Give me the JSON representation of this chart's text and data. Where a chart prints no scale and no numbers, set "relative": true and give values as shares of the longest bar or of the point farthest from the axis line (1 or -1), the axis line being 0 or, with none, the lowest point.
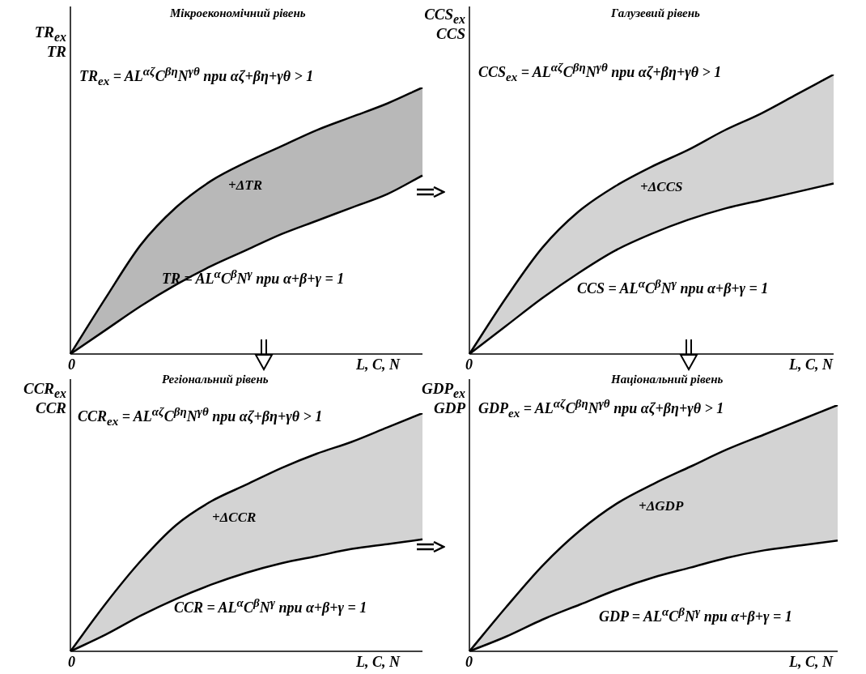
{
  "chart_data": [
    {
      "type": "area",
      "title": "Мікроекономічний рівень",
      "ylabel": "TR$_{ex}$\nTR",
      "xlabel": "L, C, N",
      "relative": true,
      "stacked": true,
      "categories": [
        null,
        null,
        null,
        null,
        null,
        null,
        null,
        null,
        null,
        null,
        null
      ],
      "series": [
        {
          "color": "#ffffff",
          "values": [
            0,
            0.09,
            0.18,
            0.26,
            0.33,
            0.39,
            0.45,
            0.5,
            0.55,
            0.6,
            0.67
          ]
        },
        {
          "color": "#b8b8b8",
          "values": [
            0,
            0.12,
            0.23,
            0.29,
            0.32,
            0.33,
            0.33,
            0.34,
            0.34,
            0.34,
            0.33
          ]
        }
      ],
      "annotations": [
        "TR$_{ex}$ = AL$^{αζ}$C$^{βη}$N$^{γθ}$ при αζ+βη+γθ > 1",
        "+ΔTR",
        "TR = AL$^{α}$C$^{β}$N$^{γ}$ при α+β+γ = 1",
        "0"
      ]
    },
    {
      "type": "area",
      "title": "Галузевий рівень",
      "ylabel": "CCS$_{ex}$\nCCS",
      "xlabel": "L, C, N",
      "relative": true,
      "stacked": true,
      "categories": [
        null,
        null,
        null,
        null,
        null,
        null,
        null,
        null,
        null,
        null,
        null
      ],
      "series": [
        {
          "color": "#ffffff",
          "values": [
            0,
            0.1,
            0.2,
            0.29,
            0.37,
            0.43,
            0.48,
            0.52,
            0.55,
            0.58,
            0.61
          ]
        },
        {
          "color": "#d3d3d3",
          "values": [
            0,
            0.1,
            0.18,
            0.22,
            0.23,
            0.24,
            0.25,
            0.28,
            0.31,
            0.35,
            0.39
          ]
        }
      ],
      "annotations": [
        "CCS$_{ex}$ = AL$^{αζ}$C$^{βη}$N$^{γθ}$ при αζ+βη+γθ > 1",
        "+ΔCCS",
        "CCS = AL$^{α}$C$^{β}$N$^{γ}$ при α+β+γ = 1",
        "0"
      ]
    },
    {
      "type": "area",
      "title": "Регіональний рівень",
      "ylabel": "CCR$_{ex}$\nCCR",
      "xlabel": "L, C, N",
      "relative": true,
      "stacked": true,
      "categories": [
        null,
        null,
        null,
        null,
        null,
        null,
        null,
        null,
        null,
        null,
        null
      ],
      "series": [
        {
          "color": "#ffffff",
          "values": [
            0,
            0.07,
            0.15,
            0.22,
            0.28,
            0.33,
            0.37,
            0.4,
            0.43,
            0.45,
            0.47
          ]
        },
        {
          "color": "#d3d3d3",
          "values": [
            0,
            0.13,
            0.23,
            0.31,
            0.35,
            0.37,
            0.4,
            0.43,
            0.45,
            0.49,
            0.53
          ]
        }
      ],
      "annotations": [
        "CCR$_{ex}$ = AL$^{αζ}$C$^{βη}$N$^{γθ}$ при αζ+βη+γθ > 1",
        "+ΔCCR",
        "CCR = AL$^{α}$C$^{β}$N$^{γ}$ при α+β+γ = 1",
        "0"
      ]
    },
    {
      "type": "area",
      "title": "Національний рівень",
      "ylabel": "GDP$_{ex}$\nGDP",
      "xlabel": "L, C, N",
      "relative": true,
      "stacked": true,
      "categories": [
        null,
        null,
        null,
        null,
        null,
        null,
        null,
        null,
        null,
        null,
        null
      ],
      "series": [
        {
          "color": "#ffffff",
          "values": [
            0,
            0.06,
            0.13,
            0.19,
            0.25,
            0.3,
            0.34,
            0.38,
            0.41,
            0.43,
            0.45
          ]
        },
        {
          "color": "#d3d3d3",
          "values": [
            0,
            0.12,
            0.22,
            0.3,
            0.35,
            0.38,
            0.41,
            0.44,
            0.47,
            0.51,
            0.55
          ]
        }
      ],
      "annotations": [
        "GDP$_{ex}$ = AL$^{αζ}$C$^{βη}$N$^{γθ}$ при αζ+βη+γθ > 1",
        "+ΔGDP",
        "GDP = AL$^{α}$C$^{β}$N$^{γ}$ при α+β+γ = 1",
        "0"
      ]
    }
  ]
}
